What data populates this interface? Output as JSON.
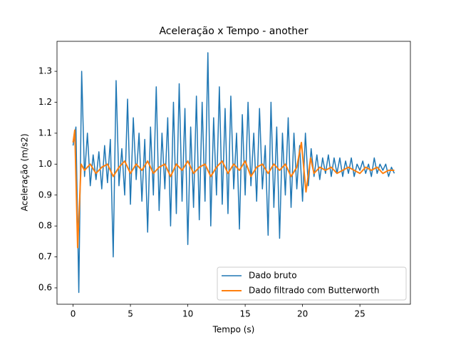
{
  "chart_data": {
    "type": "line",
    "title": "Aceleração x Tempo - another",
    "xlabel": "Tempo (s)",
    "ylabel": "Aceleração (m/s2)",
    "xlim": [
      -1.4,
      29.4
    ],
    "ylim": [
      0.547,
      1.397
    ],
    "xticks": [
      0,
      5,
      10,
      15,
      20,
      25
    ],
    "yticks": [
      0.6,
      0.7,
      0.8,
      0.9,
      {
        "value": 1,
        "label": "1.0"
      },
      1.1,
      1.2,
      1.3
    ],
    "legend": "lower right",
    "series": [
      {
        "name": "Dado bruto",
        "color": "#1f77b4",
        "x": [
          0,
          0.25,
          0.5,
          0.75,
          1,
          1.25,
          1.5,
          1.75,
          2,
          2.25,
          2.5,
          2.75,
          3,
          3.25,
          3.5,
          3.75,
          4,
          4.25,
          4.5,
          4.75,
          5,
          5.25,
          5.5,
          5.75,
          6,
          6.25,
          6.5,
          6.75,
          7,
          7.25,
          7.5,
          7.75,
          8,
          8.25,
          8.5,
          8.75,
          9,
          9.25,
          9.5,
          9.75,
          10,
          10.25,
          10.5,
          10.75,
          11,
          11.25,
          11.5,
          11.75,
          12,
          12.25,
          12.5,
          12.75,
          13,
          13.25,
          13.5,
          13.75,
          14,
          14.25,
          14.5,
          14.75,
          15,
          15.25,
          15.5,
          15.75,
          16,
          16.25,
          16.5,
          16.75,
          17,
          17.25,
          17.5,
          17.75,
          18,
          18.25,
          18.5,
          18.75,
          19,
          19.25,
          19.5,
          19.75,
          20,
          20.25,
          20.5,
          20.75,
          21,
          21.25,
          21.5,
          21.75,
          22,
          22.25,
          22.5,
          22.75,
          23,
          23.25,
          23.5,
          23.75,
          24,
          24.25,
          24.5,
          24.75,
          25,
          25.25,
          25.5,
          25.75,
          26,
          26.25,
          26.5,
          26.75,
          27,
          27.25,
          27.5,
          27.75,
          28
        ],
        "values": [
          1.06,
          1.12,
          0.585,
          1.3,
          0.96,
          1.1,
          0.93,
          1.03,
          0.95,
          1.04,
          0.92,
          1.06,
          0.94,
          1.08,
          0.7,
          1.27,
          0.93,
          1.05,
          0.9,
          1.21,
          0.87,
          1.15,
          0.95,
          1.1,
          0.88,
          1.08,
          0.78,
          1.12,
          0.9,
          1.25,
          0.85,
          1.1,
          0.92,
          1.15,
          0.8,
          1.2,
          0.84,
          1.26,
          0.88,
          1.18,
          0.74,
          1.12,
          0.86,
          1.22,
          0.82,
          1.2,
          0.88,
          1.36,
          0.8,
          1.15,
          0.9,
          1.25,
          0.87,
          1.18,
          0.84,
          1.22,
          0.92,
          1.1,
          0.79,
          1.16,
          0.9,
          1.2,
          0.93,
          1.1,
          0.88,
          1.18,
          0.92,
          1.06,
          0.77,
          1.2,
          0.86,
          1.12,
          0.76,
          1.1,
          0.9,
          1.15,
          0.86,
          1.1,
          0.92,
          1.06,
          0.88,
          1.1,
          0.93,
          1.05,
          0.96,
          1.03,
          0.95,
          1.02,
          0.97,
          1.03,
          0.96,
          1.02,
          0.97,
          1.02,
          0.96,
          1.01,
          0.97,
          1.02,
          0.96,
          1.0,
          0.98,
          1.01,
          0.97,
          1.0,
          0.96,
          1.02,
          0.97,
          1.0,
          0.98,
          1.0,
          0.96,
          0.99,
          0.97
        ]
      },
      {
        "name": "Dado filtrado com Butterworth",
        "color": "#ff7f0e",
        "x": [
          0,
          0.15,
          0.4,
          0.7,
          1,
          1.5,
          2,
          2.5,
          3,
          3.5,
          4,
          4.5,
          5,
          5.5,
          6,
          6.5,
          7,
          7.5,
          8,
          8.5,
          9,
          9.5,
          10,
          10.5,
          11,
          11.5,
          12,
          12.5,
          13,
          13.5,
          14,
          14.5,
          15,
          15.5,
          16,
          16.5,
          17,
          17.5,
          18,
          18.5,
          19,
          19.5,
          19.9,
          20.3,
          20.7,
          21,
          21.5,
          22,
          22.5,
          23,
          23.5,
          24,
          24.5,
          25,
          25.5,
          26,
          26.5,
          27,
          27.5,
          28
        ],
        "values": [
          1.07,
          1.11,
          0.73,
          1.0,
          0.98,
          1.0,
          0.97,
          0.99,
          1.0,
          0.96,
          0.99,
          1.01,
          0.97,
          1.0,
          0.98,
          1.01,
          0.97,
          0.99,
          1.0,
          0.96,
          1.0,
          0.98,
          1.01,
          0.97,
          0.99,
          1.0,
          0.96,
          0.99,
          1.01,
          0.97,
          1.0,
          0.98,
          1.01,
          0.96,
          0.99,
          1.0,
          0.97,
          1.0,
          0.98,
          1.0,
          0.96,
          0.99,
          1.07,
          0.91,
          1.02,
          0.97,
          0.99,
          0.98,
          0.99,
          0.97,
          0.98,
          0.99,
          0.98,
          0.97,
          0.99,
          0.98,
          0.99,
          0.97,
          0.98,
          0.98
        ]
      }
    ]
  }
}
